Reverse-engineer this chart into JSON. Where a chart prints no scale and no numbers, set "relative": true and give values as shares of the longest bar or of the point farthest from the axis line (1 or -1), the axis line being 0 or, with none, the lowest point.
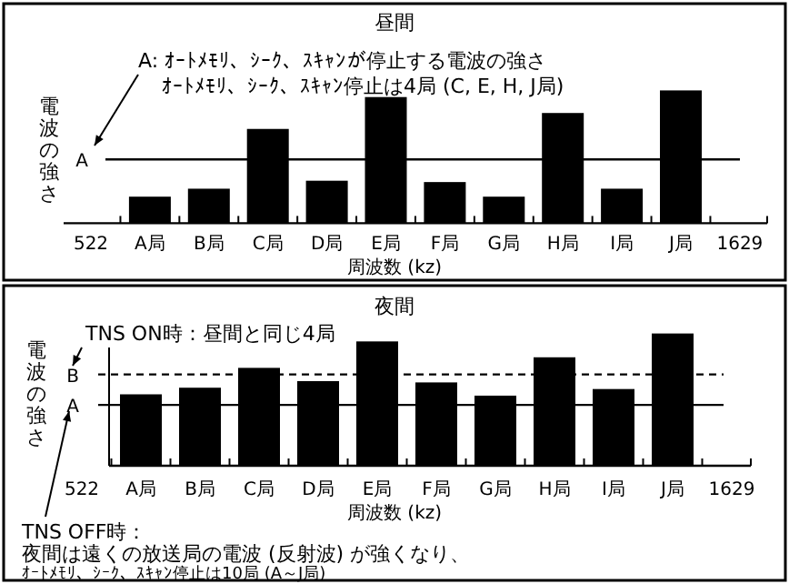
{
  "chart_data": [
    {
      "type": "bar",
      "title": "昼間",
      "xlabel": "周波数 (kz)",
      "ylabel": "電波の強さ",
      "relative": true,
      "color": "#000000",
      "categories": [
        "522",
        "A局",
        "B局",
        "C局",
        "D局",
        "E局",
        "F局",
        "G局",
        "H局",
        "I局",
        "J局",
        "1629"
      ],
      "values": [
        null,
        0.2,
        0.26,
        0.71,
        0.32,
        0.95,
        0.31,
        0.2,
        0.83,
        0.26,
        1,
        null
      ],
      "ref_lines": [
        {
          "axis": "y",
          "value": 0.48,
          "label": "A",
          "line_style": "solid"
        }
      ],
      "annotations": [
        "A: ｵｰﾄﾒﾓﾘ、ｼｰｸ、ｽｷｬﾝが停止する電波の強さ",
        "ｵｰﾄﾒﾓﾘ、ｼｰｸ、ｽｷｬﾝ停止は4局 (C, E, H, J局)"
      ]
    },
    {
      "type": "bar",
      "title": "夜間",
      "xlabel": "周波数 (kz)",
      "ylabel": "電波の強さ",
      "relative": true,
      "color": "#000000",
      "categories": [
        "522",
        "A局",
        "B局",
        "C局",
        "D局",
        "E局",
        "F局",
        "G局",
        "H局",
        "I局",
        "J局",
        "1629"
      ],
      "values": [
        null,
        0.54,
        0.59,
        0.74,
        0.64,
        0.94,
        0.63,
        0.53,
        0.82,
        0.58,
        1,
        null
      ],
      "ref_lines": [
        {
          "axis": "y",
          "value": 0.69,
          "label": "B",
          "line_style": "dashed"
        },
        {
          "axis": "y",
          "value": 0.46,
          "label": "A",
          "line_style": "solid"
        }
      ],
      "annotations": [
        "TNS ON時：昼間と同じ4局",
        "TNS OFF時：",
        "夜間は遠くの放送局の電波 (反射波) が強くなり、",
        "ｵｰﾄﾒﾓﾘ、ｼｰｸ、ｽｷｬﾝ停止は10局 (A～J局)"
      ]
    }
  ]
}
